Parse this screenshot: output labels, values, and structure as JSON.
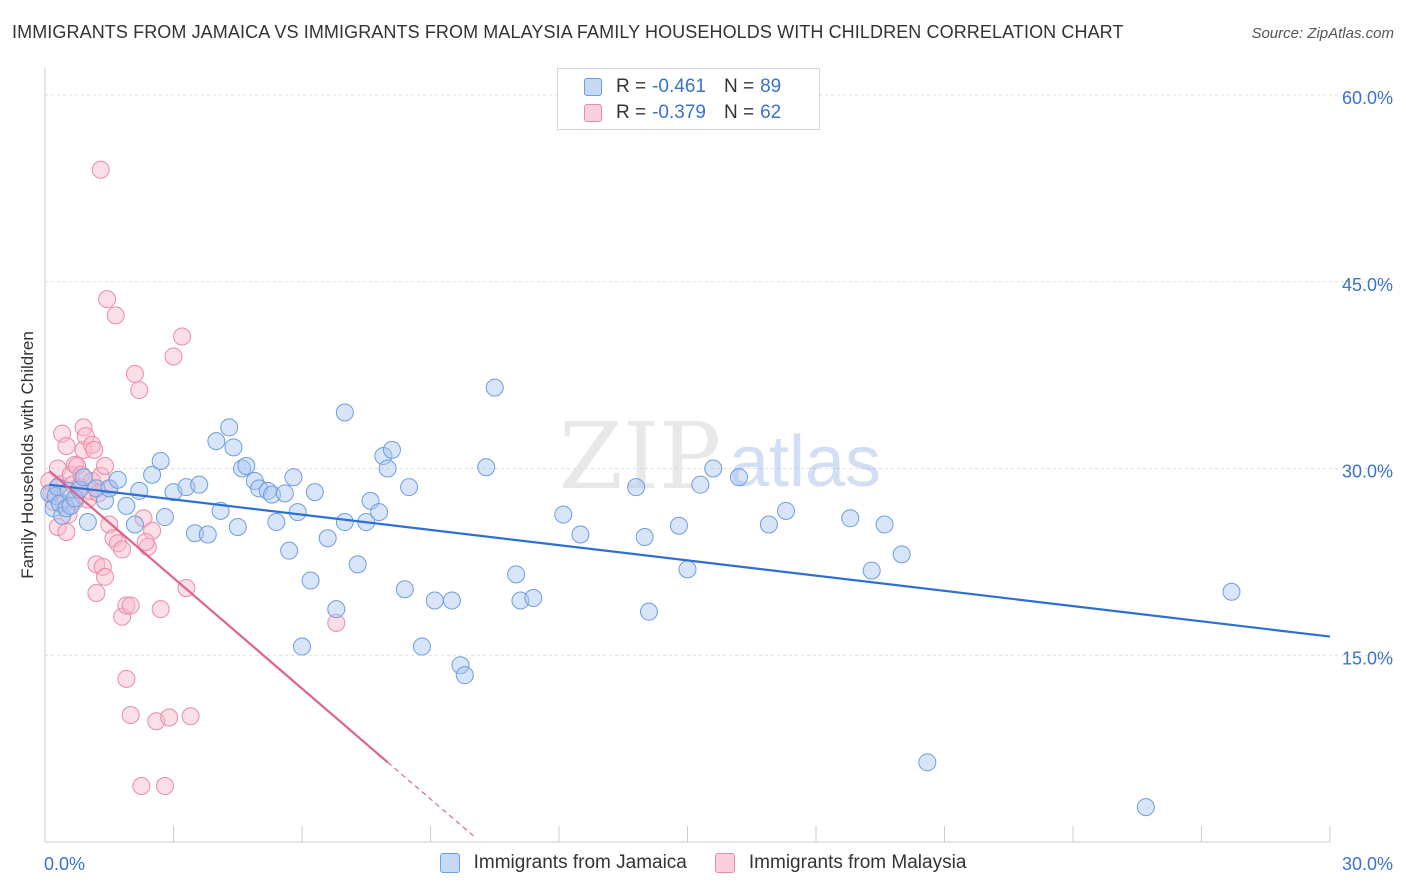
{
  "header": {
    "title": "IMMIGRANTS FROM JAMAICA VS IMMIGRANTS FROM MALAYSIA FAMILY HOUSEHOLDS WITH CHILDREN CORRELATION CHART",
    "source": "Source: ZipAtlas.com"
  },
  "watermark": {
    "zip": "ZIP",
    "atlas": "atlas"
  },
  "colors": {
    "jamaica_fill": "#a9c6ef",
    "jamaica_stroke": "#6e9de0",
    "jamaica_line": "#2e6fcf",
    "malaysia_fill": "#f6b8ca",
    "malaysia_stroke": "#ea8aa8",
    "malaysia_line": "#e0638f",
    "axis_text": "#3a73c8",
    "grid": "#dddddd"
  },
  "legend_top": {
    "rows": [
      {
        "r_label": "R =",
        "r_value": "-0.461",
        "n_label": "N =",
        "n_value": "89"
      },
      {
        "r_label": "R =",
        "r_value": "-0.379",
        "n_label": "N =",
        "n_value": "62"
      }
    ]
  },
  "legend_bottom": {
    "jamaica": "Immigrants from Jamaica",
    "malaysia": "Immigrants from Malaysia"
  },
  "chart_data": {
    "type": "scatter",
    "title": "IMMIGRANTS FROM JAMAICA VS IMMIGRANTS FROM MALAYSIA FAMILY HOUSEHOLDS WITH CHILDREN CORRELATION CHART",
    "xlabel": "",
    "ylabel": "Family Households with Children",
    "xlim": [
      0,
      30
    ],
    "ylim": [
      0,
      60
    ],
    "x_tick_labels": [
      "0.0%",
      "30.0%"
    ],
    "y_ticks": [
      15,
      30,
      45,
      60
    ],
    "y_tick_labels": [
      "15.0%",
      "30.0%",
      "45.0%",
      "60.0%"
    ],
    "series": [
      {
        "name": "Immigrants from Jamaica",
        "R": -0.461,
        "N": 89,
        "trend": {
          "x": [
            0.1,
            30.0
          ],
          "y": [
            28.7,
            16.5
          ]
        },
        "points": [
          [
            0.1,
            28.0
          ],
          [
            0.2,
            26.8
          ],
          [
            0.25,
            27.8
          ],
          [
            0.3,
            28.5
          ],
          [
            0.35,
            27.2
          ],
          [
            0.4,
            26.2
          ],
          [
            0.5,
            26.8
          ],
          [
            0.55,
            28.2
          ],
          [
            0.6,
            27.0
          ],
          [
            0.7,
            27.6
          ],
          [
            0.8,
            28.3
          ],
          [
            0.9,
            29.3
          ],
          [
            1.0,
            25.7
          ],
          [
            1.2,
            28.4
          ],
          [
            1.4,
            27.4
          ],
          [
            1.5,
            28.4
          ],
          [
            1.7,
            29.1
          ],
          [
            1.9,
            27.0
          ],
          [
            2.1,
            25.5
          ],
          [
            2.2,
            28.2
          ],
          [
            2.5,
            29.5
          ],
          [
            2.7,
            30.6
          ],
          [
            2.8,
            26.1
          ],
          [
            3.0,
            28.1
          ],
          [
            3.3,
            28.5
          ],
          [
            3.5,
            24.8
          ],
          [
            3.6,
            28.7
          ],
          [
            3.8,
            24.7
          ],
          [
            4.0,
            32.2
          ],
          [
            4.1,
            26.6
          ],
          [
            4.3,
            33.3
          ],
          [
            4.4,
            31.7
          ],
          [
            4.5,
            25.3
          ],
          [
            4.6,
            30.0
          ],
          [
            4.7,
            30.2
          ],
          [
            4.9,
            29.0
          ],
          [
            5.0,
            28.4
          ],
          [
            5.2,
            28.2
          ],
          [
            5.3,
            27.9
          ],
          [
            5.4,
            25.7
          ],
          [
            5.6,
            28.0
          ],
          [
            5.7,
            23.4
          ],
          [
            5.8,
            29.3
          ],
          [
            5.9,
            26.5
          ],
          [
            6.0,
            15.7
          ],
          [
            6.2,
            21.0
          ],
          [
            6.3,
            28.1
          ],
          [
            6.6,
            24.4
          ],
          [
            6.8,
            18.7
          ],
          [
            7.0,
            25.7
          ],
          [
            7.0,
            34.5
          ],
          [
            7.3,
            22.3
          ],
          [
            7.5,
            25.7
          ],
          [
            7.6,
            27.4
          ],
          [
            7.8,
            26.5
          ],
          [
            7.9,
            31.0
          ],
          [
            8.0,
            30.0
          ],
          [
            8.1,
            31.5
          ],
          [
            8.5,
            28.5
          ],
          [
            8.4,
            20.3
          ],
          [
            8.8,
            15.7
          ],
          [
            9.1,
            19.4
          ],
          [
            9.5,
            19.4
          ],
          [
            9.7,
            14.2
          ],
          [
            9.8,
            13.4
          ],
          [
            10.3,
            30.1
          ],
          [
            10.5,
            36.5
          ],
          [
            11.0,
            21.5
          ],
          [
            11.1,
            19.4
          ],
          [
            11.4,
            19.6
          ],
          [
            12.1,
            26.3
          ],
          [
            12.5,
            24.7
          ],
          [
            13.8,
            28.5
          ],
          [
            14.0,
            24.5
          ],
          [
            14.1,
            18.5
          ],
          [
            14.8,
            25.4
          ],
          [
            15.0,
            21.9
          ],
          [
            15.3,
            28.7
          ],
          [
            15.6,
            30.0
          ],
          [
            16.2,
            29.3
          ],
          [
            16.9,
            25.5
          ],
          [
            17.3,
            26.6
          ],
          [
            18.8,
            26.0
          ],
          [
            19.3,
            21.8
          ],
          [
            19.6,
            25.5
          ],
          [
            20.0,
            23.1
          ],
          [
            20.6,
            6.4
          ],
          [
            25.7,
            2.8
          ],
          [
            27.7,
            20.1
          ]
        ]
      },
      {
        "name": "Immigrants from Malaysia",
        "R": -0.379,
        "N": 62,
        "trend": {
          "x": [
            0.1,
            8.0
          ],
          "y": [
            29.8,
            6.4
          ]
        },
        "trend_dashed": {
          "x": [
            8.0,
            10.0
          ],
          "y": [
            6.4,
            0.5
          ]
        },
        "points": [
          [
            0.1,
            29.0
          ],
          [
            0.15,
            28.0
          ],
          [
            0.2,
            27.3
          ],
          [
            0.3,
            30.0
          ],
          [
            0.3,
            25.3
          ],
          [
            0.35,
            28.7
          ],
          [
            0.4,
            32.8
          ],
          [
            0.45,
            27.2
          ],
          [
            0.5,
            24.9
          ],
          [
            0.5,
            31.8
          ],
          [
            0.6,
            29.5
          ],
          [
            0.65,
            28.7
          ],
          [
            0.7,
            27.4
          ],
          [
            0.7,
            30.3
          ],
          [
            0.75,
            30.2
          ],
          [
            0.8,
            28.5
          ],
          [
            0.85,
            29.5
          ],
          [
            0.9,
            31.5
          ],
          [
            0.9,
            33.3
          ],
          [
            0.95,
            32.6
          ],
          [
            1.0,
            27.5
          ],
          [
            1.05,
            28.2
          ],
          [
            1.1,
            29.0
          ],
          [
            1.1,
            31.9
          ],
          [
            1.15,
            31.5
          ],
          [
            1.2,
            22.3
          ],
          [
            1.2,
            20.0
          ],
          [
            1.3,
            54.0
          ],
          [
            1.3,
            29.4
          ],
          [
            1.35,
            22.1
          ],
          [
            1.4,
            30.2
          ],
          [
            1.4,
            21.3
          ],
          [
            1.45,
            43.6
          ],
          [
            1.5,
            25.5
          ],
          [
            1.5,
            28.4
          ],
          [
            1.6,
            24.4
          ],
          [
            1.65,
            42.3
          ],
          [
            1.7,
            24.0
          ],
          [
            1.8,
            23.5
          ],
          [
            1.8,
            18.1
          ],
          [
            1.9,
            19.0
          ],
          [
            1.9,
            13.1
          ],
          [
            2.0,
            19.0
          ],
          [
            2.0,
            10.2
          ],
          [
            2.1,
            37.6
          ],
          [
            2.2,
            36.3
          ],
          [
            2.25,
            4.5
          ],
          [
            2.3,
            26.0
          ],
          [
            2.4,
            23.7
          ],
          [
            2.5,
            25.0
          ],
          [
            2.6,
            9.7
          ],
          [
            2.7,
            18.7
          ],
          [
            2.8,
            4.5
          ],
          [
            3.0,
            39.0
          ],
          [
            3.2,
            40.6
          ],
          [
            3.3,
            20.4
          ],
          [
            3.4,
            10.1
          ],
          [
            6.8,
            17.6
          ],
          [
            2.9,
            10.0
          ],
          [
            0.55,
            26.3
          ],
          [
            1.25,
            28.0
          ],
          [
            2.35,
            24.1
          ]
        ]
      }
    ]
  }
}
